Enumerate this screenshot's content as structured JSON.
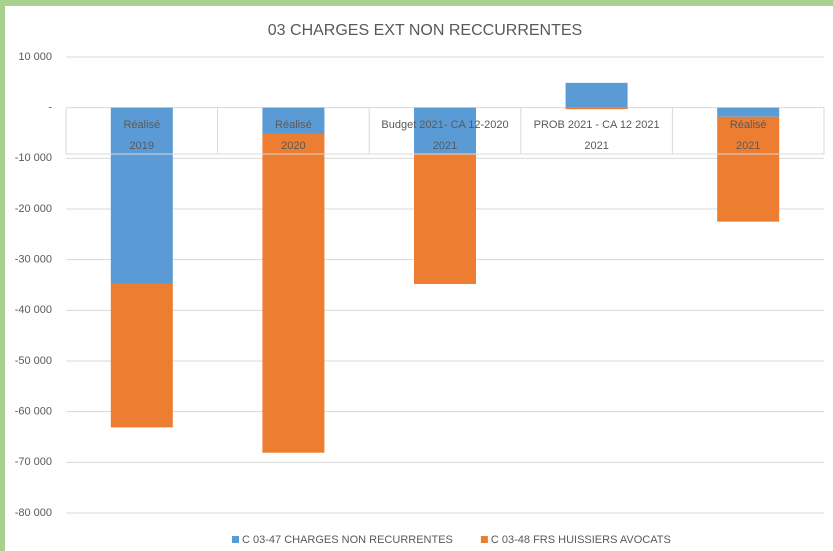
{
  "chart_data": {
    "type": "bar",
    "stacked": true,
    "title": "03 CHARGES EXT NON RECCURRENTES",
    "categories": [
      [
        "Réalisé",
        "2019"
      ],
      [
        "Réalisé",
        "2020"
      ],
      [
        "Budget 2021- CA 12-2020",
        "2021"
      ],
      [
        "PROB 2021 - CA 12 2021",
        "2021"
      ],
      [
        "Réalisé",
        "2021"
      ]
    ],
    "series": [
      {
        "name": "C 03-47 CHARGES NON RECURRENTES",
        "color": "#5b9bd5",
        "values": [
          -34700,
          -5100,
          -9100,
          4900,
          -1800
        ]
      },
      {
        "name": "C 03-48 FRS HUISSIERS AVOCATS",
        "color": "#ed7d31",
        "values": [
          -28400,
          -63000,
          -25700,
          -300,
          -20700
        ]
      }
    ],
    "ylim": [
      -80000,
      10000
    ],
    "yticks": [
      {
        "value": 10000,
        "label": "10 000"
      },
      {
        "value": 0,
        "label": "-"
      },
      {
        "value": -10000,
        "label": "-10 000"
      },
      {
        "value": -20000,
        "label": "-20 000"
      },
      {
        "value": -30000,
        "label": "-30 000"
      },
      {
        "value": -40000,
        "label": "-40 000"
      },
      {
        "value": -50000,
        "label": "-50 000"
      },
      {
        "value": -60000,
        "label": "-60 000"
      },
      {
        "value": -70000,
        "label": "-70 000"
      },
      {
        "value": -80000,
        "label": "-80 000"
      }
    ],
    "grid": true,
    "legend": "bottom"
  }
}
